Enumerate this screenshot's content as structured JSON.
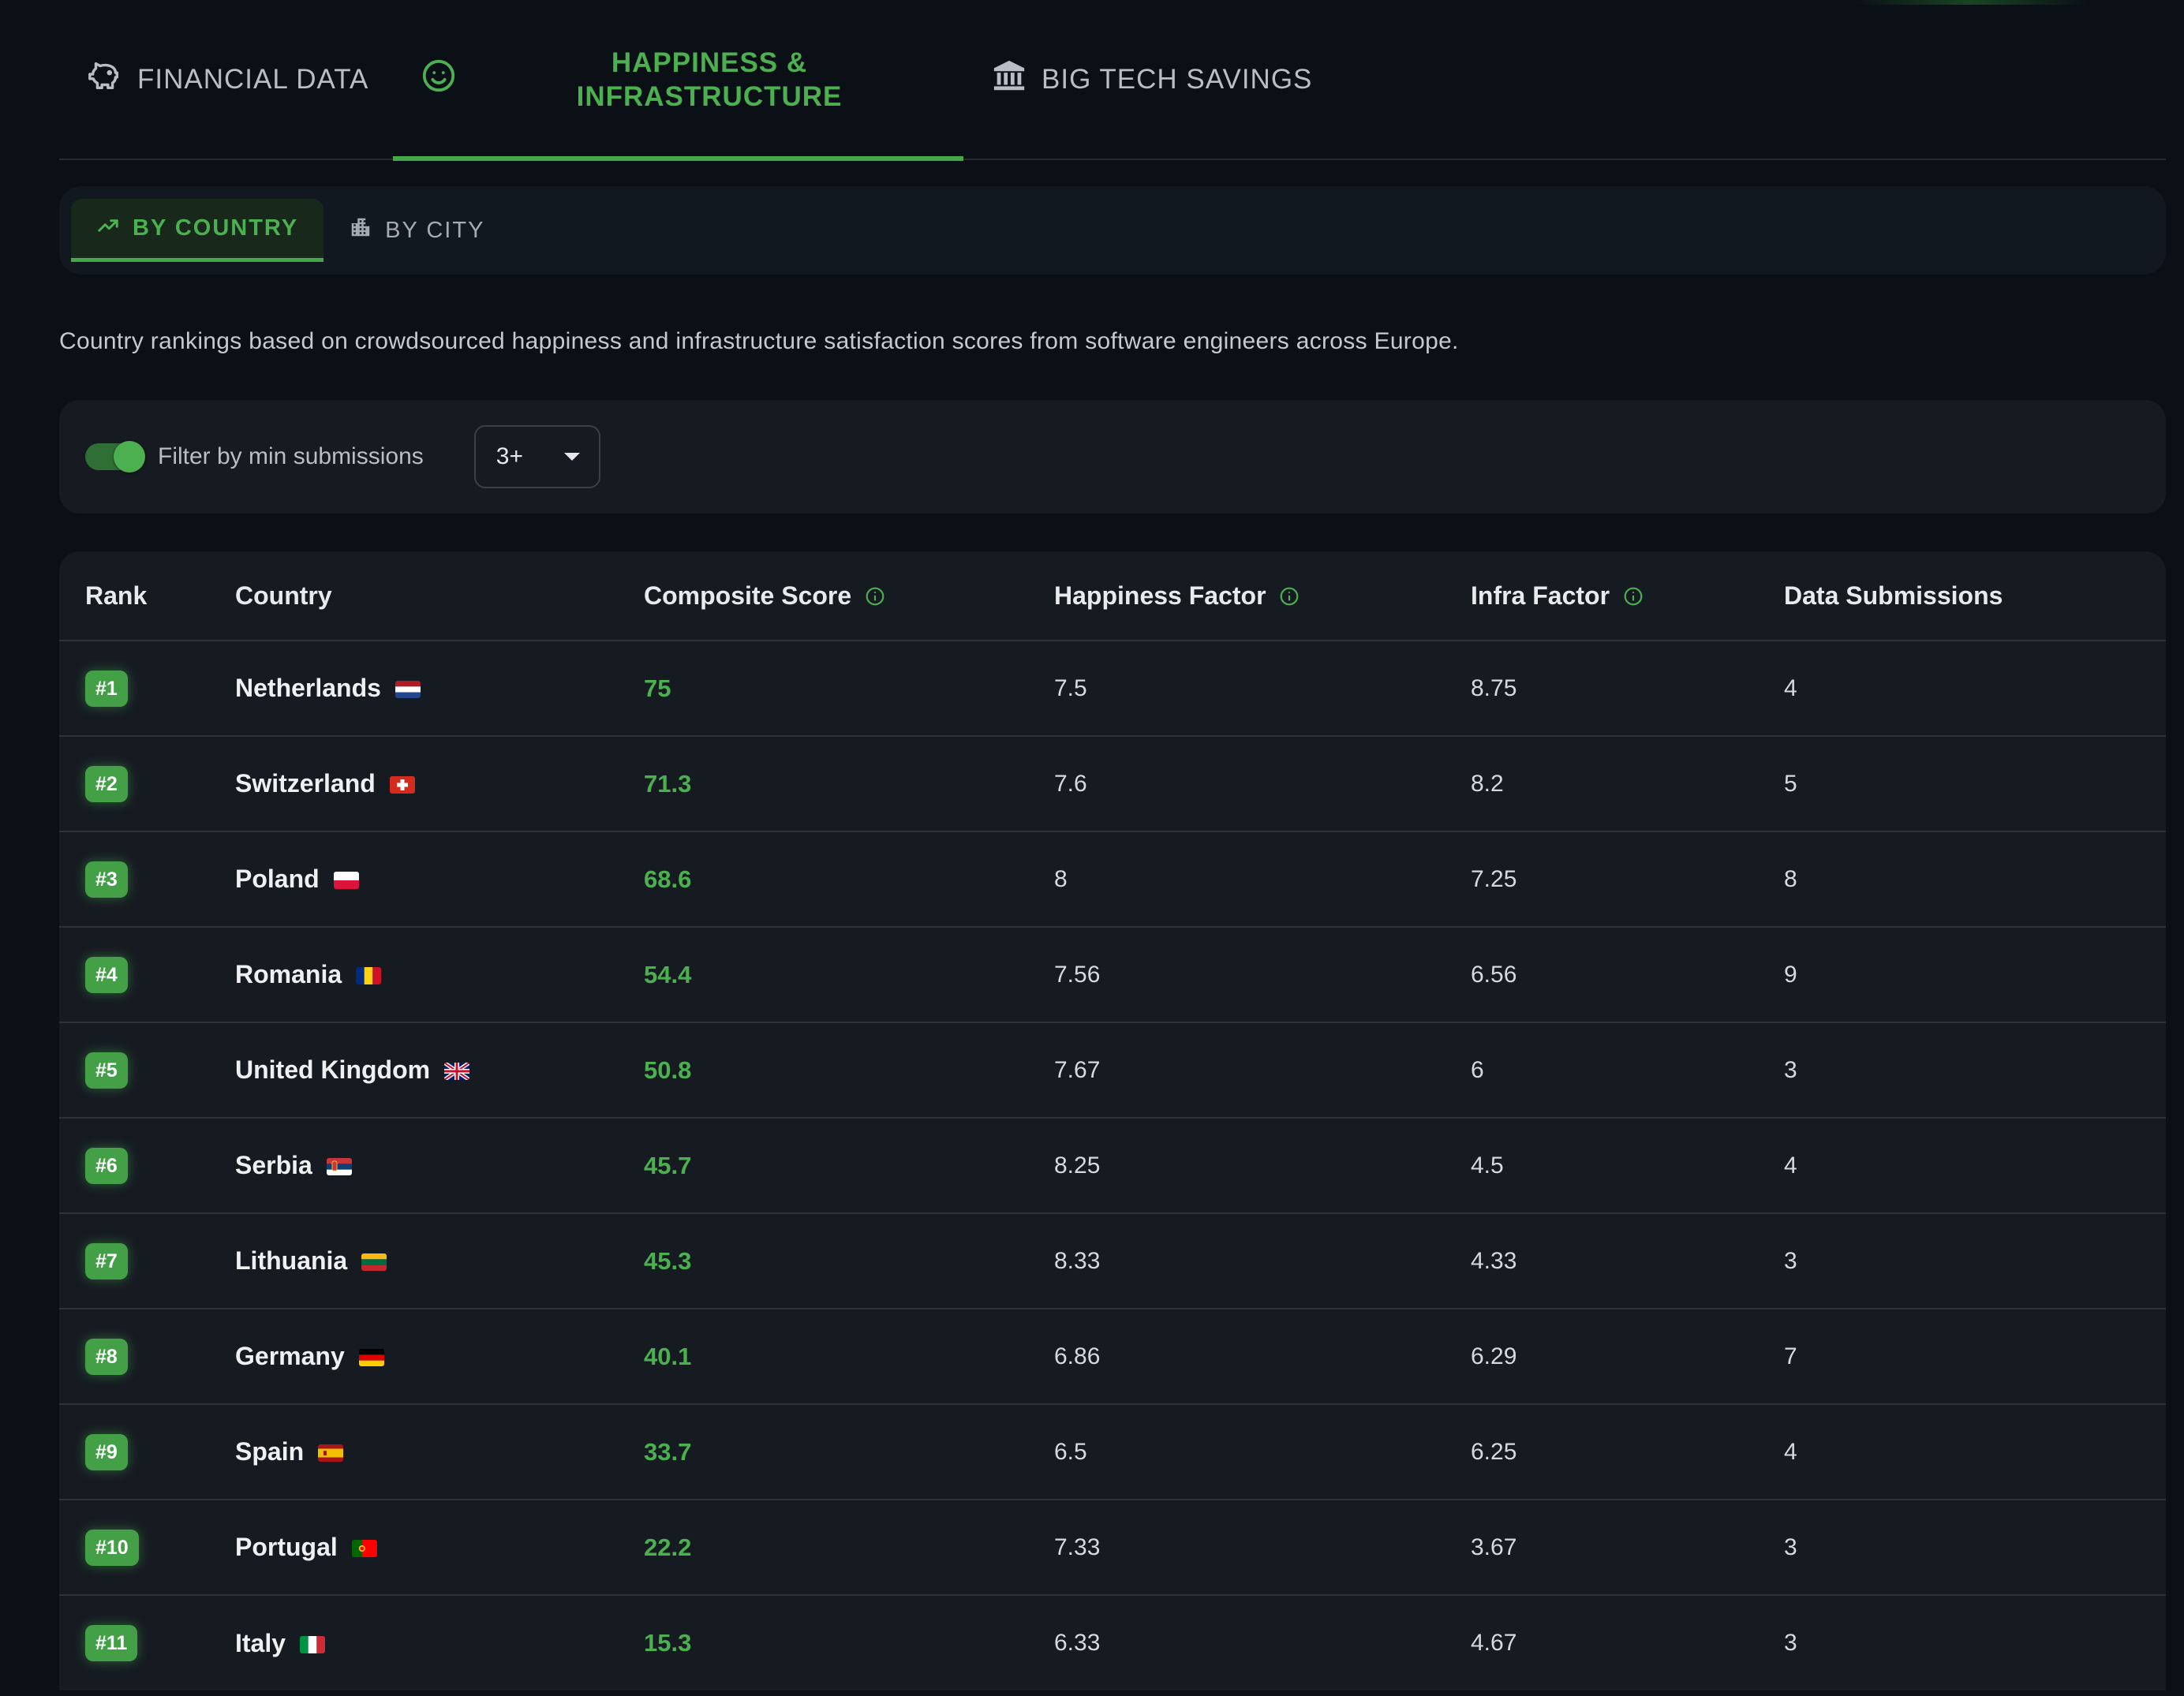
{
  "tabs": {
    "financial": "FINANCIAL DATA",
    "happiness_line1": "HAPPINESS &",
    "happiness_line2": "INFRASTRUCTURE",
    "bigtech": "BIG TECH SAVINGS"
  },
  "sub_tabs": {
    "by_country": "BY COUNTRY",
    "by_city": "BY CITY"
  },
  "description": "Country rankings based on crowdsourced happiness and infrastructure satisfaction scores from software engineers across Europe.",
  "filter": {
    "label": "Filter by min submissions",
    "enabled": true,
    "selected": "3+"
  },
  "colors": {
    "accent": "#4cb050",
    "background": "#0b0f16",
    "panel": "#161b22"
  },
  "table": {
    "headers": {
      "rank": "Rank",
      "country": "Country",
      "composite": "Composite Score",
      "happiness": "Happiness Factor",
      "infra": "Infra Factor",
      "submissions": "Data Submissions"
    },
    "rows": [
      {
        "rank": "#1",
        "country": "Netherlands",
        "flag": "nl",
        "composite": "75",
        "happiness": "7.5",
        "infra": "8.75",
        "submissions": "4"
      },
      {
        "rank": "#2",
        "country": "Switzerland",
        "flag": "ch",
        "composite": "71.3",
        "happiness": "7.6",
        "infra": "8.2",
        "submissions": "5"
      },
      {
        "rank": "#3",
        "country": "Poland",
        "flag": "pl",
        "composite": "68.6",
        "happiness": "8",
        "infra": "7.25",
        "submissions": "8"
      },
      {
        "rank": "#4",
        "country": "Romania",
        "flag": "ro",
        "composite": "54.4",
        "happiness": "7.56",
        "infra": "6.56",
        "submissions": "9"
      },
      {
        "rank": "#5",
        "country": "United Kingdom",
        "flag": "gb",
        "composite": "50.8",
        "happiness": "7.67",
        "infra": "6",
        "submissions": "3"
      },
      {
        "rank": "#6",
        "country": "Serbia",
        "flag": "rs",
        "composite": "45.7",
        "happiness": "8.25",
        "infra": "4.5",
        "submissions": "4"
      },
      {
        "rank": "#7",
        "country": "Lithuania",
        "flag": "lt",
        "composite": "45.3",
        "happiness": "8.33",
        "infra": "4.33",
        "submissions": "3"
      },
      {
        "rank": "#8",
        "country": "Germany",
        "flag": "de",
        "composite": "40.1",
        "happiness": "6.86",
        "infra": "6.29",
        "submissions": "7"
      },
      {
        "rank": "#9",
        "country": "Spain",
        "flag": "es",
        "composite": "33.7",
        "happiness": "6.5",
        "infra": "6.25",
        "submissions": "4"
      },
      {
        "rank": "#10",
        "country": "Portugal",
        "flag": "pt",
        "composite": "22.2",
        "happiness": "7.33",
        "infra": "3.67",
        "submissions": "3"
      },
      {
        "rank": "#11",
        "country": "Italy",
        "flag": "it",
        "composite": "15.3",
        "happiness": "6.33",
        "infra": "4.67",
        "submissions": "3"
      }
    ]
  }
}
